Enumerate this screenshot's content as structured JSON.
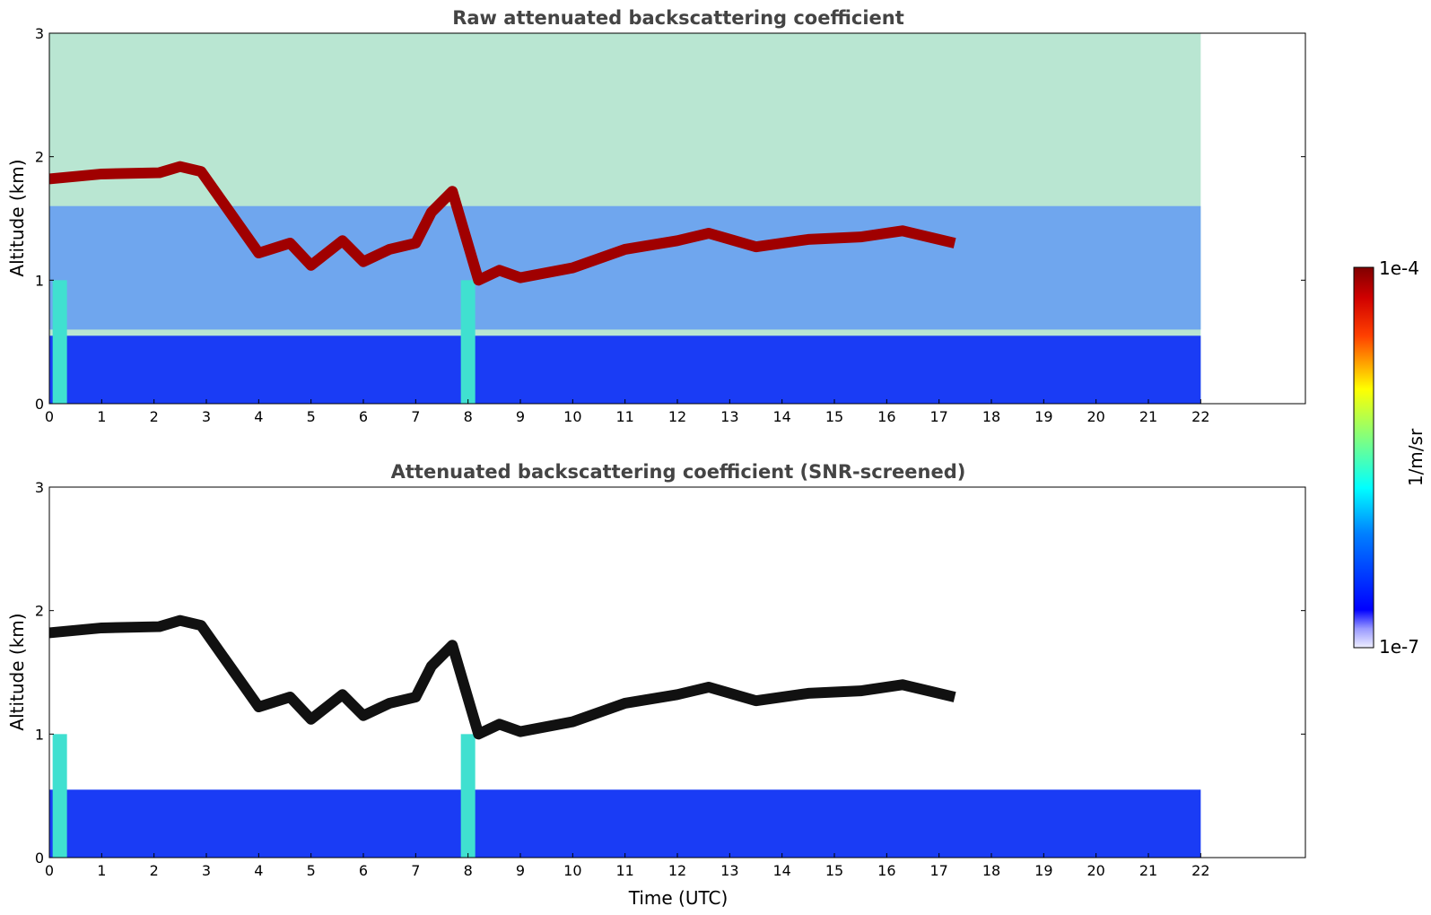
{
  "chart_data": [
    {
      "type": "heatmap",
      "title": "Raw attenuated backscattering coefficient",
      "xlabel": "",
      "ylabel": "Altitude (km)",
      "xlim": [
        0,
        24
      ],
      "ylim": [
        0,
        3
      ],
      "data_x_range": [
        0,
        22
      ],
      "xticks": [
        "0",
        "1",
        "2",
        "3",
        "4",
        "5",
        "6",
        "7",
        "8",
        "9",
        "10",
        "11",
        "12",
        "13",
        "14",
        "15",
        "16",
        "17",
        "18",
        "19",
        "20",
        "21",
        "22"
      ],
      "yticks": [
        "0",
        "1",
        "2",
        "3"
      ],
      "screened": false,
      "features": {
        "cloud_layer": [
          {
            "t": 0.0,
            "alt": 1.82
          },
          {
            "t": 1.0,
            "alt": 1.86
          },
          {
            "t": 2.1,
            "alt": 1.87
          },
          {
            "t": 2.5,
            "alt": 1.92
          },
          {
            "t": 2.9,
            "alt": 1.88
          },
          {
            "t": 4.0,
            "alt": 1.22
          },
          {
            "t": 4.6,
            "alt": 1.3
          },
          {
            "t": 5.0,
            "alt": 1.12
          },
          {
            "t": 5.6,
            "alt": 1.32
          },
          {
            "t": 6.0,
            "alt": 1.15
          },
          {
            "t": 6.5,
            "alt": 1.25
          },
          {
            "t": 7.0,
            "alt": 1.3
          },
          {
            "t": 7.3,
            "alt": 1.55
          },
          {
            "t": 7.7,
            "alt": 1.72
          },
          {
            "t": 8.2,
            "alt": 1.0
          },
          {
            "t": 8.6,
            "alt": 1.08
          },
          {
            "t": 9.0,
            "alt": 1.02
          },
          {
            "t": 10.0,
            "alt": 1.1
          },
          {
            "t": 11.0,
            "alt": 1.25
          },
          {
            "t": 12.0,
            "alt": 1.32
          },
          {
            "t": 12.6,
            "alt": 1.38
          },
          {
            "t": 13.5,
            "alt": 1.27
          },
          {
            "t": 14.5,
            "alt": 1.33
          },
          {
            "t": 15.5,
            "alt": 1.35
          },
          {
            "t": 16.3,
            "alt": 1.4
          },
          {
            "t": 17.3,
            "alt": 1.3
          }
        ],
        "boundary_layer_top_km": 0.55,
        "dense_column_times": [
          0.2,
          8.0
        ]
      }
    },
    {
      "type": "heatmap",
      "title": "Attenuated backscattering coefficient (SNR-screened)",
      "xlabel": "Time (UTC)",
      "ylabel": "Altitude (km)",
      "xlim": [
        0,
        24
      ],
      "ylim": [
        0,
        3
      ],
      "data_x_range": [
        0,
        22
      ],
      "xticks": [
        "0",
        "1",
        "2",
        "3",
        "4",
        "5",
        "6",
        "7",
        "8",
        "9",
        "10",
        "11",
        "12",
        "13",
        "14",
        "15",
        "16",
        "17",
        "18",
        "19",
        "20",
        "21",
        "22"
      ],
      "yticks": [
        "0",
        "1",
        "2",
        "3"
      ],
      "screened": true
    }
  ],
  "colorbar": {
    "label": "1/m/sr",
    "max_label": "1e-4",
    "min_label": "1e-7",
    "scale": "log",
    "colormap": "jet",
    "low_color": "#e6e6ff",
    "high_color": "#800000"
  }
}
